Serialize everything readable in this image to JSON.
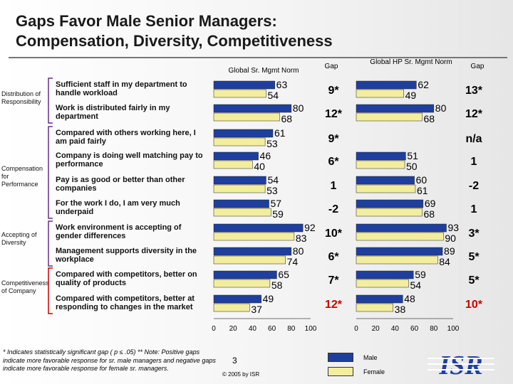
{
  "title_line1": "Gaps Favor Male Senior Managers:",
  "title_line2": "Compensation, Diversity, Competitiveness",
  "headers": {
    "global": "Global Sr. Mgmt Norm",
    "gap1": "Gap",
    "hp": "Global HP Sr. Mgmt Norm",
    "gap2": "Gap"
  },
  "categories": [
    {
      "label": "Distribution of Responsibility",
      "color": "#6a2d8a"
    },
    {
      "label": "Compensation for Performance",
      "color": "#6a2d8a"
    },
    {
      "label": "Accepting of Diversity",
      "color": "#6a2d8a"
    },
    {
      "label": "Competitiveness of Company",
      "color": "#cc0000"
    }
  ],
  "chart_data": {
    "type": "bar",
    "orientation": "horizontal",
    "xlim": [
      0,
      100
    ],
    "xticks": [
      "0",
      "20",
      "40",
      "60",
      "80",
      "100"
    ],
    "series_colors": {
      "Male": "#1f3f9e",
      "Female": "#f2ee9e"
    },
    "legend": [
      "Male",
      "Female"
    ],
    "items": [
      "Sufficient staff in my department to handle workload",
      "Work is distributed fairly in my department",
      "Compared with others working here, I am paid fairly",
      "Company is doing well matching pay to performance",
      "Pay is as good or better than other companies",
      "For the work I do, I am very much underpaid",
      "Work environment is accepting of gender differences",
      "Management supports diversity in the workplace",
      "Compared with competitors, better on quality of products",
      "Compared with competitors, better at responding to changes in the market"
    ],
    "global_norm": {
      "male": [
        63,
        80,
        61,
        46,
        54,
        57,
        92,
        80,
        65,
        49
      ],
      "female": [
        54,
        68,
        53,
        40,
        53,
        59,
        83,
        74,
        58,
        37
      ],
      "gap": [
        "9*",
        "12*",
        "9*",
        "6*",
        "1",
        "-2",
        "10*",
        "6*",
        "7*",
        "12*"
      ]
    },
    "hp_norm": {
      "male": [
        62,
        80,
        null,
        51,
        60,
        69,
        93,
        89,
        59,
        48
      ],
      "female": [
        49,
        68,
        null,
        50,
        61,
        68,
        90,
        84,
        54,
        38
      ],
      "gap": [
        "13*",
        "12*",
        "n/a",
        "1",
        "-2",
        "1",
        "3*",
        "5*",
        "5*",
        "10*"
      ]
    },
    "red_gap_rows": [
      9
    ]
  },
  "footnote": "* Indicates statistically significant gap ( p ≤ .05) ** Note: Positive gaps indicate more favorable response for sr. male managers and negative gaps indicate more favorable response for female sr. managers.",
  "page_number": "3",
  "copyright": "© 2005 by ISR",
  "legend": {
    "male": "Male",
    "female": "Female"
  },
  "logo_text": "ISR"
}
